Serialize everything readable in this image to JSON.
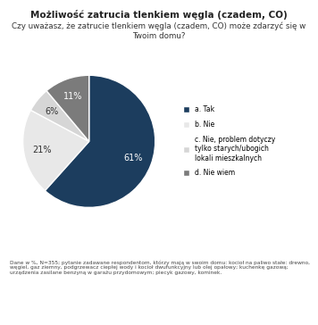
{
  "chart_data": {
    "type": "pie",
    "title": "Możliwość zatrucia tlenkiem węgla (czadem, CO)",
    "subtitle": "Czy uważasz, że zatrucie tlenkiem węgla (czadem, CO) może zdarzyć się w Twoim domu?",
    "categories": [
      "a. Tak",
      "b. Nie",
      "c. Nie, problem dotyczy tylko starych/ubogich lokali mieszkalnych",
      "d. Nie wiem"
    ],
    "values": [
      61,
      21,
      6,
      11
    ],
    "value_labels": [
      "61%",
      "21%",
      "6%",
      "11%"
    ],
    "colors": [
      "#1c3d5e",
      "#e8e8e8",
      "#d6d6d6",
      "#7b7b7b"
    ],
    "data_labels": true,
    "legend": "center left",
    "note": "Dane w %, N=355; pytanie zadawane respondentom, którzy mają w swoim domu: kocioł na paliwo stałe: drewno, węgiel, gaz ziemny, podgrzewacz ciepłej wody i kocioł dwufunkcyjny lub olej opałowy; kuchenkę gazową; urządzenia zasilane benzyną w garażu przydomowym; piecyk gazowy, kominek."
  }
}
